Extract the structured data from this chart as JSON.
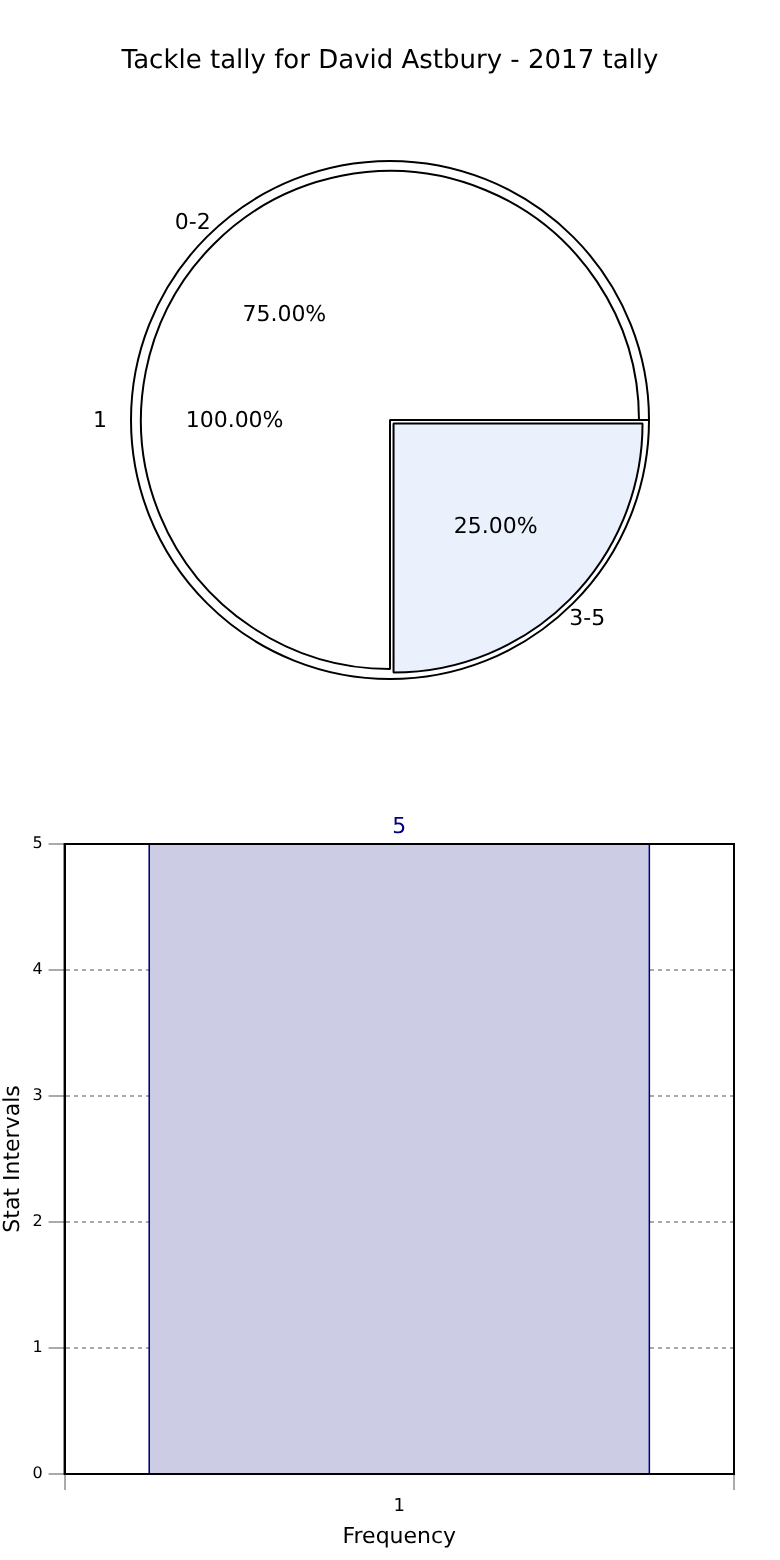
{
  "chart_data": [
    {
      "type": "pie",
      "title": "Tackle tally for David Astbury - 2017 tally",
      "categories": [
        "1"
      ],
      "values": [
        100
      ],
      "colors": [
        "#ffffff"
      ],
      "value_labels": [
        "100.00%"
      ]
    },
    {
      "type": "pie",
      "categories": [
        "0-2",
        "3-5"
      ],
      "values": [
        75,
        25
      ],
      "colors": [
        "#ffffff",
        "#eaf0fc"
      ],
      "value_labels": [
        "75.00%",
        "25.00%"
      ]
    },
    {
      "type": "bar",
      "categories": [
        "1"
      ],
      "values": [
        5
      ],
      "color": "#cccce4",
      "ylim": [
        0,
        5
      ],
      "yticks": [
        0,
        1,
        2,
        3,
        4,
        5
      ],
      "grid": true,
      "data_labels": true,
      "xlabel": "Frequency",
      "ylabel": "Stat Intervals"
    }
  ]
}
